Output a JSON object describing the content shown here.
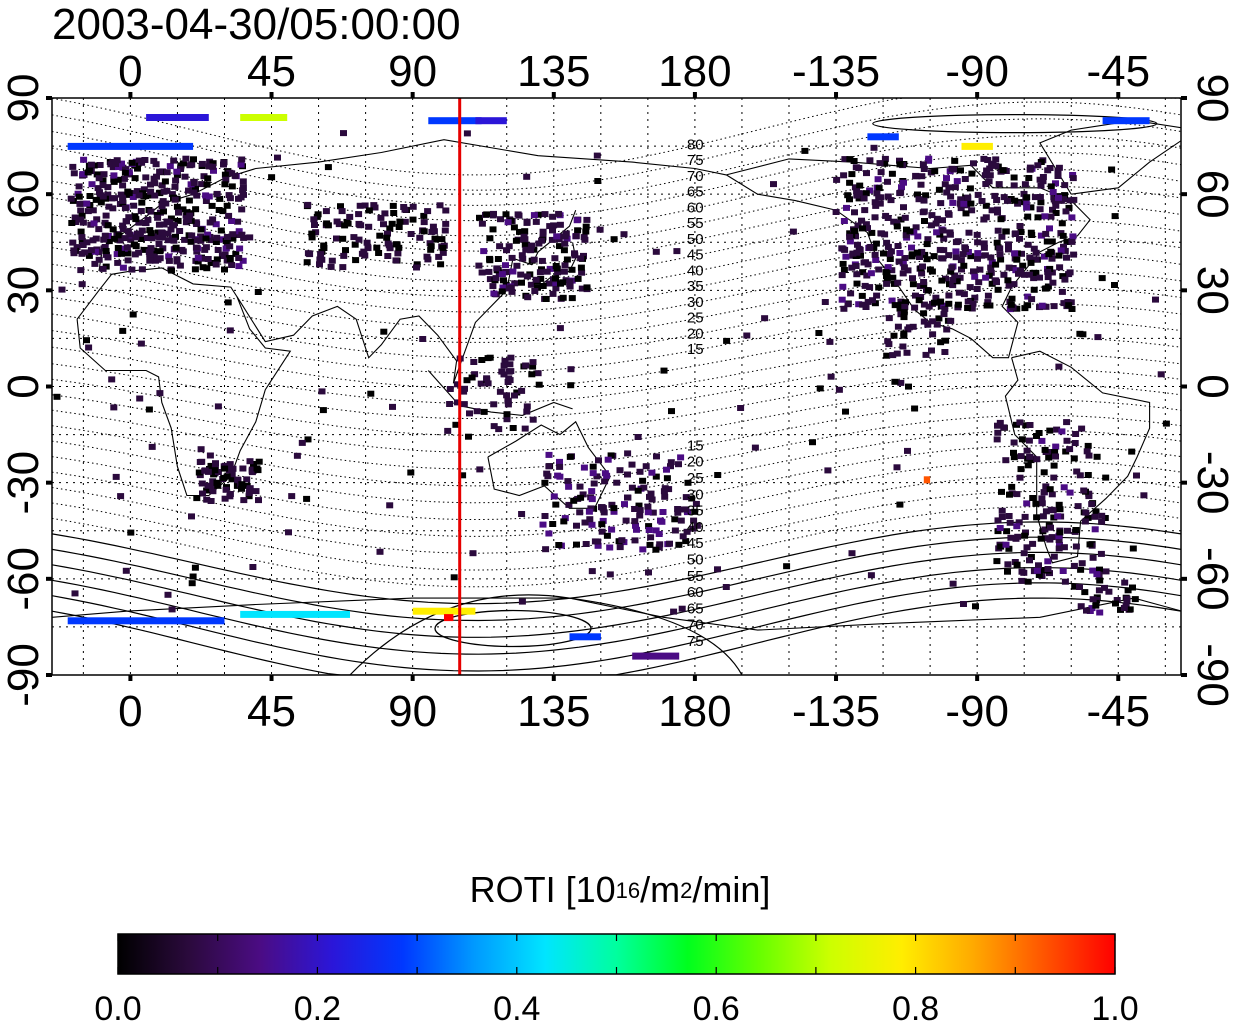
{
  "timestamp": "2003-04-30/05:00:00",
  "longitude_tick_labels": [
    "0",
    "45",
    "90",
    "135",
    "180",
    "-135",
    "-90",
    "-45"
  ],
  "latitude_tick_labels": [
    "90",
    "60",
    "30",
    "0",
    "-30",
    "-60",
    "-90"
  ],
  "contour_labels_north": [
    "80",
    "75",
    "70",
    "65",
    "60",
    "55",
    "50",
    "45",
    "40",
    "35",
    "30",
    "25",
    "20",
    "15"
  ],
  "contour_labels_south": [
    "15",
    "20",
    "25",
    "30",
    "35",
    "40",
    "45",
    "50",
    "55",
    "60",
    "65",
    "70",
    "75"
  ],
  "colorbar": {
    "title_prefix": "ROTI  [10",
    "title_sup1": "16",
    "title_mid": "/m",
    "title_sup2": "2",
    "title_suffix": "/min]",
    "tick_labels": [
      "0.0",
      "0.2",
      "0.4",
      "0.6",
      "0.8",
      "1.0"
    ],
    "range": [
      0.0,
      1.0
    ],
    "colors": [
      "#000000",
      "#2b0a3d",
      "#4b0c84",
      "#2b16d8",
      "#0038ff",
      "#0099ff",
      "#00e5ff",
      "#00ff9e",
      "#00ff1e",
      "#66ff00",
      "#ccff00",
      "#ffee00",
      "#ffaa00",
      "#ff5500",
      "#ff0000"
    ]
  },
  "map": {
    "lon_range": [
      -25,
      335
    ],
    "lat_range": [
      -90,
      90
    ],
    "sun_meridian_lon": 105,
    "grid": "dotted",
    "meridian_color": "#e60000"
  }
}
